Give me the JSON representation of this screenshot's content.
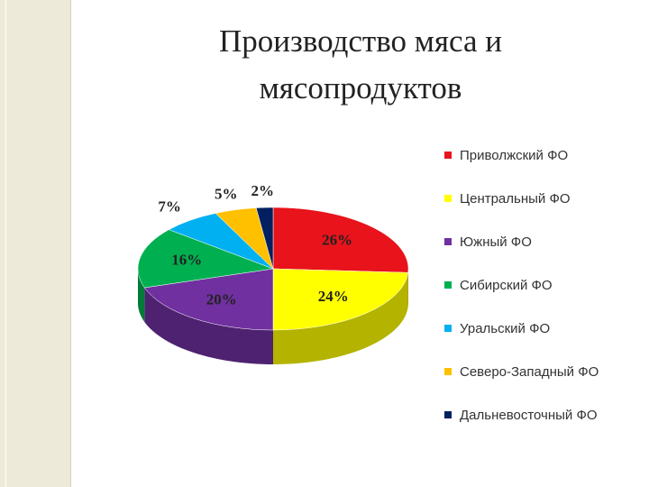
{
  "chart_data": {
    "type": "pie",
    "title": "Производство мяса и мясопродуктов",
    "series": [
      {
        "name": "Приволжский ФО",
        "color": "#e8131b",
        "values": [
          26
        ],
        "value_labels": [
          "26%"
        ]
      },
      {
        "name": "Центральный ФО",
        "color": "#ffff00",
        "values": [
          24
        ],
        "value_labels": [
          "24%"
        ]
      },
      {
        "name": "Южный ФО",
        "color": "#7030a0",
        "values": [
          20
        ],
        "value_labels": [
          "20%"
        ]
      },
      {
        "name": "Сибирский ФО",
        "color": "#00b050",
        "values": [
          16
        ],
        "value_labels": [
          "16%"
        ]
      },
      {
        "name": "Уральский ФО",
        "color": "#00b0f0",
        "values": [
          7
        ],
        "value_labels": [
          "7%"
        ]
      },
      {
        "name": "Северо-Западный ФО",
        "color": "#ffc000",
        "values": [
          5
        ],
        "value_labels": [
          "5%"
        ]
      },
      {
        "name": "Дальневосточный ФО",
        "color": "#002060",
        "values": [
          2
        ],
        "value_labels": [
          "2%"
        ]
      }
    ],
    "legend": "right"
  }
}
